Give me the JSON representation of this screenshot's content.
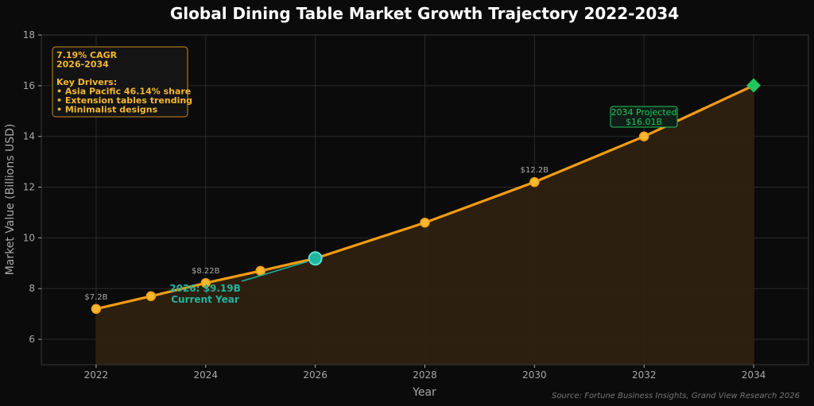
{
  "chart_data": {
    "type": "line",
    "title": "Global Dining Table Market Growth Trajectory 2022-2034",
    "xlabel": "Year",
    "ylabel": "Market Value (Billions USD)",
    "xlim": [
      2021,
      2035
    ],
    "ylim": [
      5,
      18
    ],
    "x_ticks": [
      2022,
      2024,
      2026,
      2028,
      2030,
      2032,
      2034
    ],
    "y_ticks": [
      6,
      8,
      10,
      12,
      14,
      16,
      18
    ],
    "grid": true,
    "area_fill": true,
    "series": [
      {
        "x": [
          2022,
          2023,
          2024,
          2025,
          2026,
          2028,
          2030,
          2032,
          2034
        ],
        "values": [
          7.2,
          7.7,
          8.22,
          8.7,
          9.19,
          10.6,
          12.2,
          14.0,
          16.01
        ]
      }
    ],
    "point_labels": [
      {
        "x": 2022,
        "y": 7.2,
        "text": "$7.2B"
      },
      {
        "x": 2024,
        "y": 8.22,
        "text": "$8.22B"
      },
      {
        "x": 2030,
        "y": 12.2,
        "text": "$12.2B"
      }
    ],
    "annotations": {
      "cagr": {
        "lines": [
          "7.19% CAGR",
          "2026-2034",
          "",
          "Key Drivers:",
          "• Asia Pacific 46.14% share",
          "• Extension tables trending",
          "• Minimalist designs"
        ]
      },
      "current": {
        "x": 2026,
        "y": 9.19,
        "lines": [
          "2026: $9.19B",
          "Current Year"
        ]
      },
      "projected": {
        "x": 2034,
        "y": 16.01,
        "lines": [
          "2034 Projected",
          "$16.01B"
        ]
      }
    },
    "source": "Source: Fortune Business Insights, Grand View Research 2026",
    "colors": {
      "line": "#f39c12",
      "marker": "#f5b82e",
      "current": "#1fb5a0",
      "projected": "#22c55e",
      "fill": "#2e2110",
      "background": "#0b0b0b",
      "grid": "#2a2a2a"
    }
  }
}
